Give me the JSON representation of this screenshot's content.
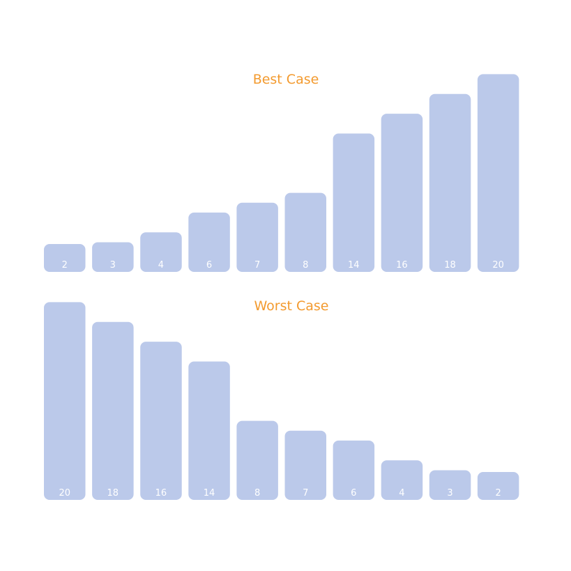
{
  "colors": {
    "bar": "#bbc9ea",
    "title": "#f39a2e",
    "label": "#ffffff",
    "background": "#ffffff"
  },
  "chart_data": [
    {
      "type": "bar",
      "title": "Best Case",
      "categories": [
        "2",
        "3",
        "4",
        "6",
        "7",
        "8",
        "14",
        "16",
        "18",
        "20"
      ],
      "values": [
        2,
        3,
        4,
        6,
        7,
        8,
        14,
        16,
        18,
        20
      ],
      "grid": false,
      "legend": "none"
    },
    {
      "type": "bar",
      "title": "Worst Case",
      "categories": [
        "20",
        "18",
        "16",
        "14",
        "8",
        "7",
        "6",
        "4",
        "3",
        "2"
      ],
      "values": [
        20,
        18,
        16,
        14,
        8,
        7,
        6,
        4,
        3,
        2
      ],
      "grid": false,
      "legend": "none"
    }
  ]
}
